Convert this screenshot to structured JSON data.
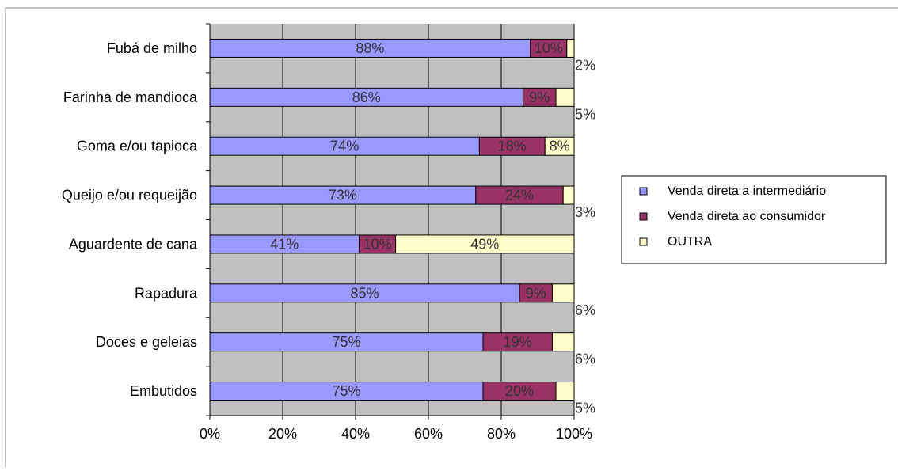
{
  "chart_data": {
    "type": "bar",
    "orientation": "horizontal",
    "stacked": true,
    "percent_stacked": true,
    "categories": [
      "Fubá de milho",
      "Farinha de mandioca",
      "Goma e/ou tapioca",
      "Queijo e/ou requeijão",
      "Aguardente de cana",
      "Rapadura",
      "Doces e geleias",
      "Embutidos"
    ],
    "series": [
      {
        "name": "Venda direta a intermediário",
        "color": "#9999ff",
        "values": [
          88,
          86,
          74,
          73,
          41,
          85,
          75,
          75
        ],
        "labels": [
          "88%",
          "86%",
          "74%",
          "73%",
          "41%",
          "85%",
          "75%",
          "75%"
        ]
      },
      {
        "name": "Venda direta ao consumidor",
        "color": "#993366",
        "values": [
          10,
          9,
          18,
          24,
          10,
          9,
          19,
          20
        ],
        "labels": [
          "10%",
          "9%",
          "18%",
          "24%",
          "10%",
          "9%",
          "19%",
          "20%"
        ]
      },
      {
        "name": "OUTRA",
        "color": "#ffffcc",
        "values": [
          2,
          5,
          8,
          3,
          49,
          6,
          6,
          5
        ],
        "labels": [
          "2%",
          "5%",
          "8%",
          "3%",
          "49%",
          "6%",
          "6%",
          "5%"
        ]
      }
    ],
    "x_ticks": [
      "0%",
      "20%",
      "40%",
      "60%",
      "80%",
      "100%"
    ],
    "xlim": [
      0,
      100
    ],
    "grid": true,
    "plot_background": "#c0c0c0",
    "legend_position": "right",
    "title": "",
    "xlabel": "",
    "ylabel": ""
  }
}
